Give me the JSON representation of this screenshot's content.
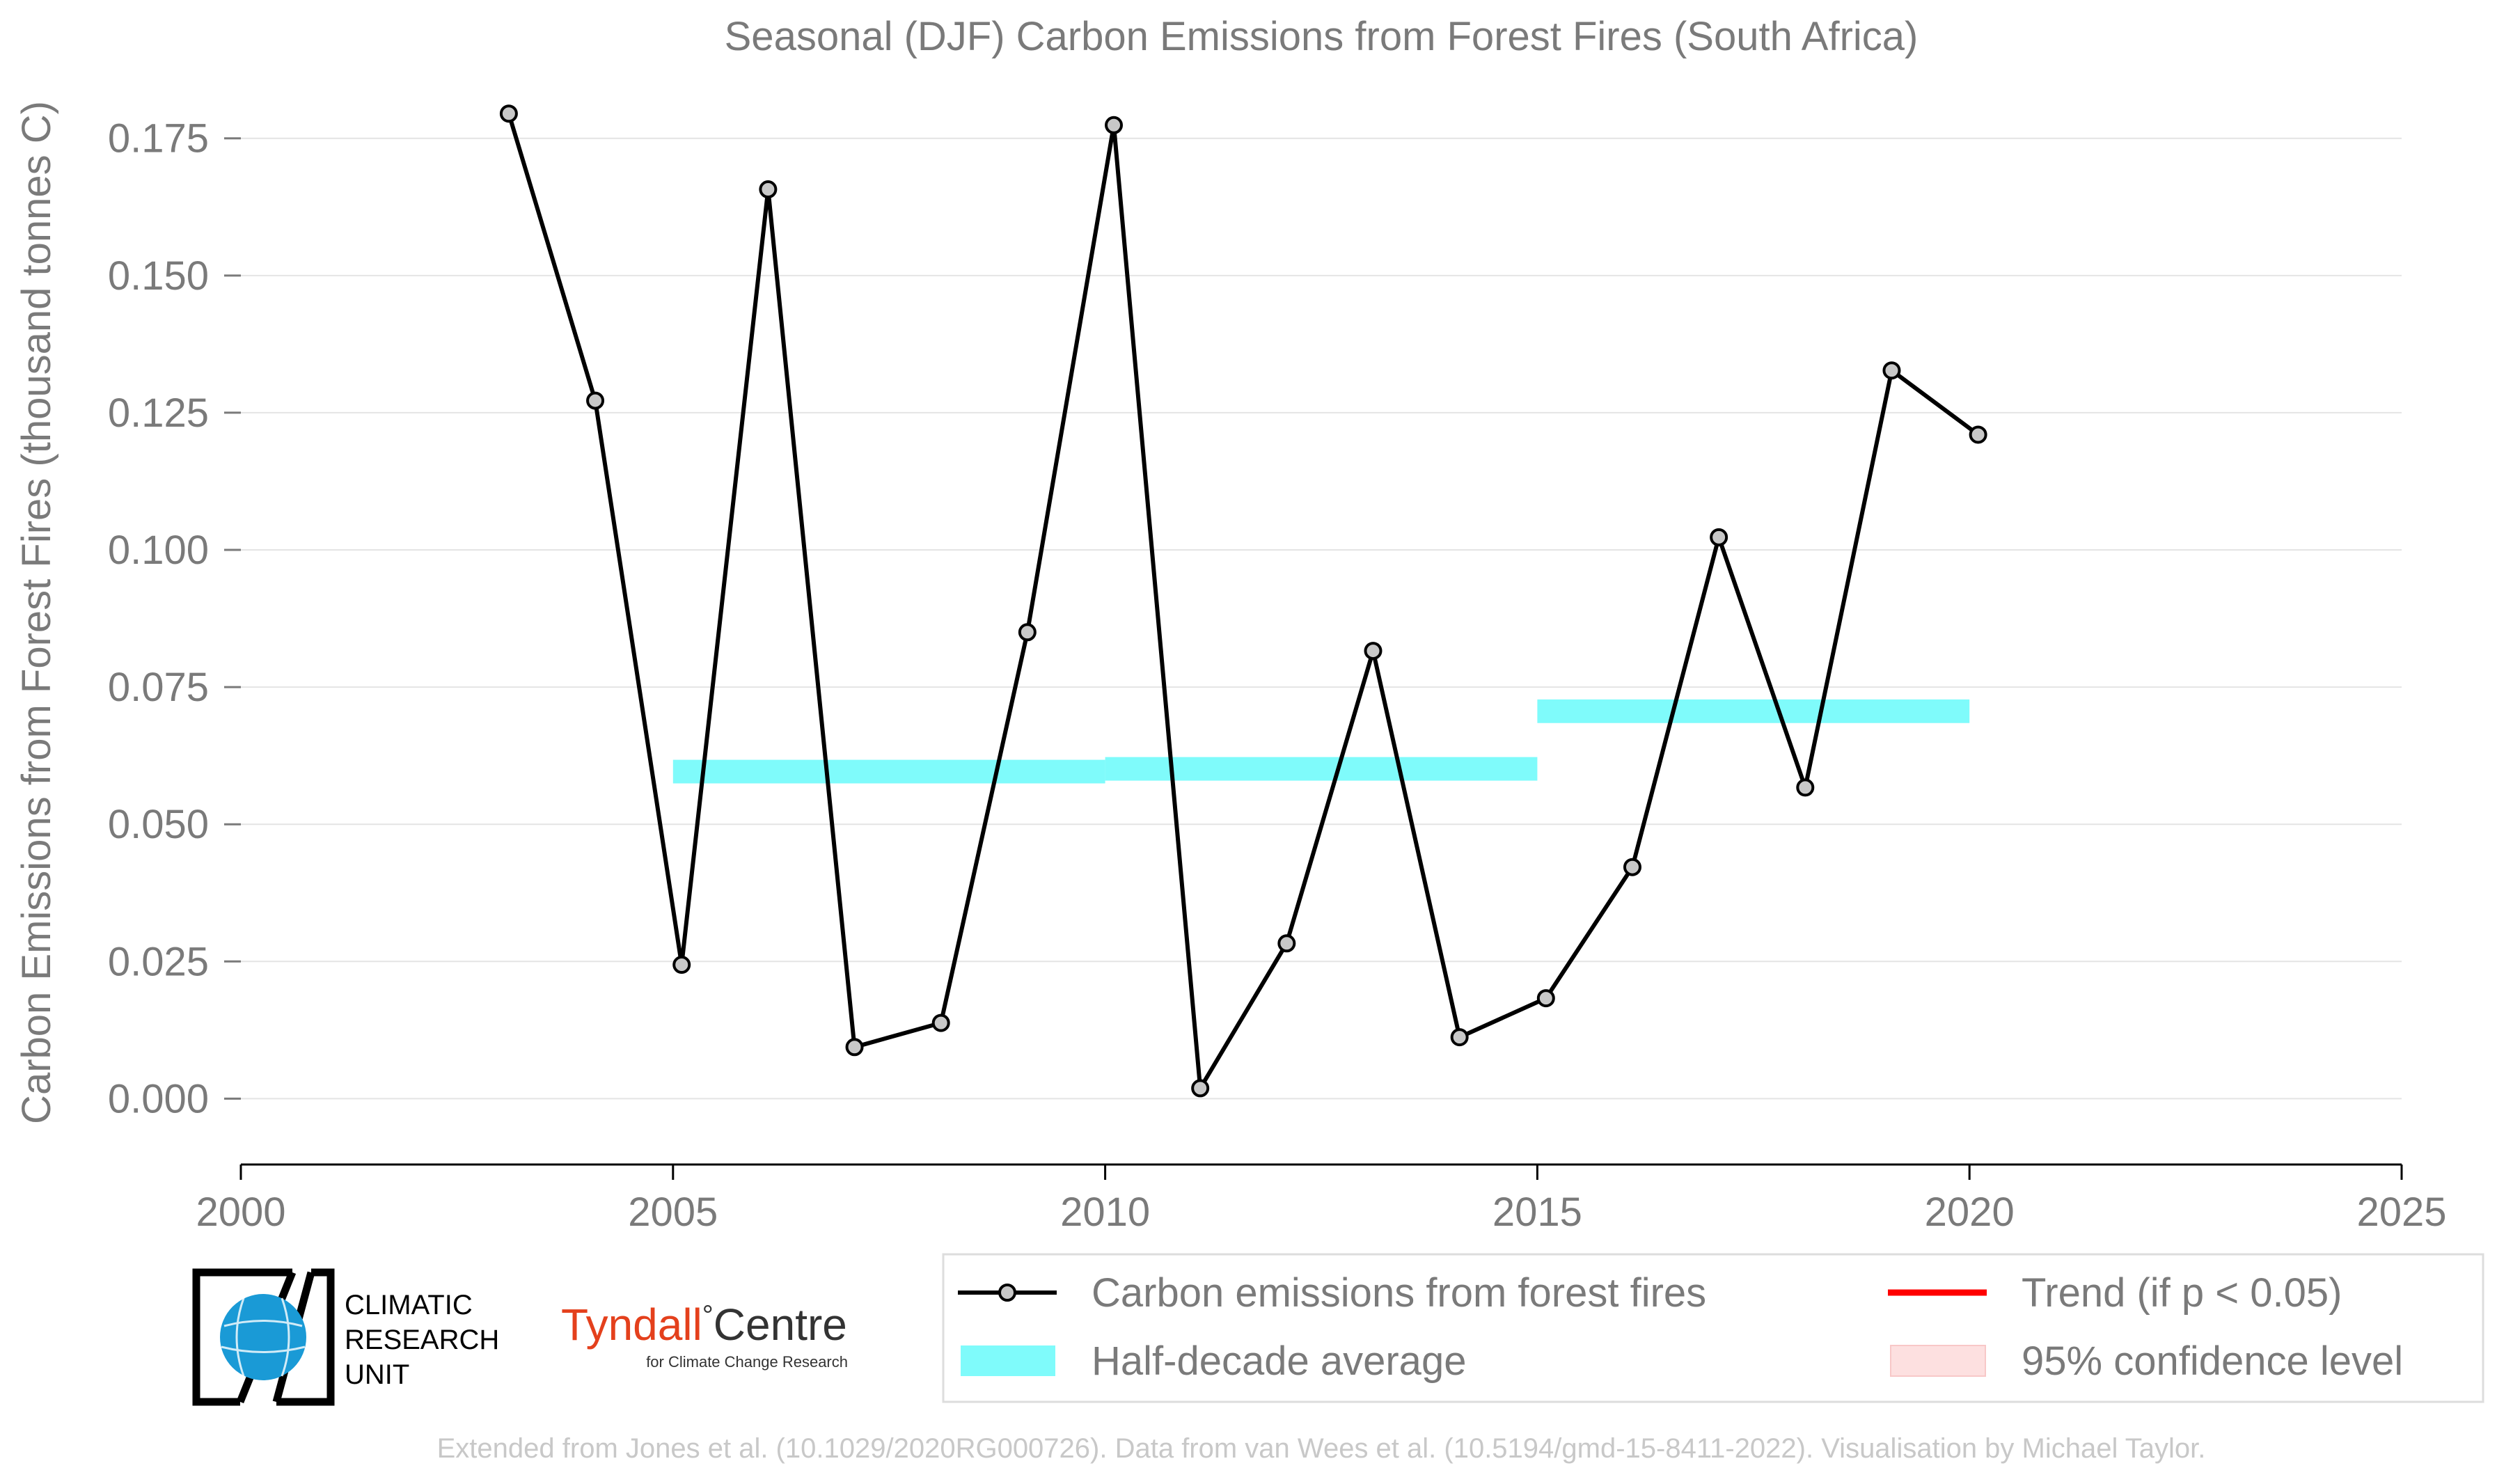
{
  "chart_data": {
    "type": "line",
    "title": "Seasonal (DJF) Carbon Emissions from Forest Fires (South Africa)",
    "ylabel": "Carbon Emissions from Forest Fires (thousand tonnes C)",
    "xlabel": "",
    "xlim": [
      2000,
      2025
    ],
    "ylim": [
      -0.012,
      0.186
    ],
    "x_ticks": [
      2000,
      2005,
      2010,
      2015,
      2020,
      2025
    ],
    "y_ticks": [
      0.0,
      0.025,
      0.05,
      0.075,
      0.1,
      0.125,
      0.15,
      0.175
    ],
    "y_tick_labels": [
      "0.000",
      "0.025",
      "0.050",
      "0.075",
      "0.100",
      "0.125",
      "0.150",
      "0.175"
    ],
    "grid": "horizontal",
    "legend_position": "bottom-right",
    "series": [
      {
        "name": "Carbon emissions from forest fires",
        "color": "#000000",
        "marker_fill": "#c8c8c8",
        "x": [
          2003,
          2004,
          2005,
          2006,
          2007,
          2008,
          2009,
          2010,
          2011,
          2012,
          2013,
          2014,
          2015,
          2016,
          2017,
          2018,
          2019,
          2020
        ],
        "values": [
          0.1795,
          0.1272,
          0.0244,
          0.1657,
          0.0094,
          0.0138,
          0.085,
          0.1774,
          0.0019,
          0.0283,
          0.0816,
          0.0112,
          0.0183,
          0.0422,
          0.1023,
          0.0567,
          0.1327,
          0.121
        ]
      }
    ],
    "half_decade_average": {
      "name": "Half-decade average",
      "color": "#7ffbfb",
      "segments": [
        {
          "x_start": 2005,
          "x_end": 2010,
          "value": 0.0596
        },
        {
          "x_start": 2010,
          "x_end": 2015,
          "value": 0.0601
        },
        {
          "x_start": 2015,
          "x_end": 2020,
          "value": 0.0706
        }
      ]
    },
    "legend": [
      {
        "label": "Carbon emissions from forest fires",
        "symbol": "line-marker",
        "color": "#000000"
      },
      {
        "label": "Trend (if p < 0.05)",
        "symbol": "line",
        "color": "#ff0000"
      },
      {
        "label": "Half-decade average",
        "symbol": "patch",
        "color": "#7ffbfb"
      },
      {
        "label": "95% confidence level",
        "symbol": "patch",
        "color": "#fde0e0"
      }
    ]
  },
  "logos": {
    "cru_lines": [
      "CLIMATIC",
      "RESEARCH",
      "UNIT"
    ],
    "tyndall_main": "Tyndall",
    "tyndall_degree": "°",
    "tyndall_centre": "Centre",
    "tyndall_sub": "for Climate Change Research"
  },
  "credit": "Extended from Jones et al. (10.1029/2020RG000726). Data from van Wees et al. (10.5194/gmd-15-8411-2022). Visualisation by Michael Taylor.",
  "colors": {
    "text": "#7a7a7a",
    "grid": "#e4e4e4",
    "tyndall_red": "#e4401c",
    "cru_blue": "#1a9ad6"
  }
}
